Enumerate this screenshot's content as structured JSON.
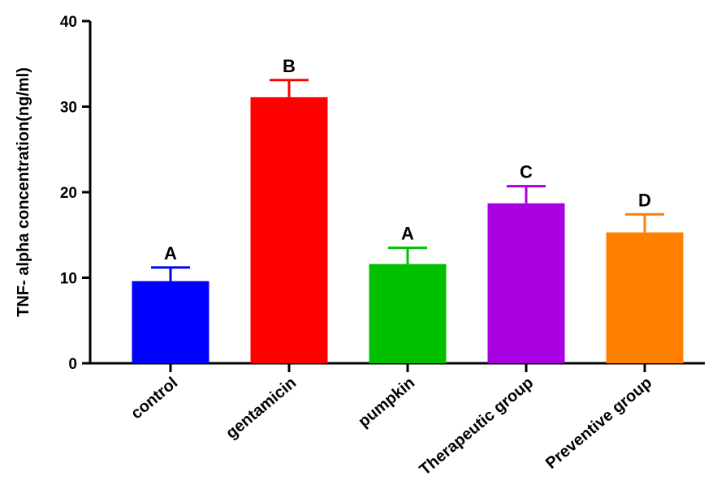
{
  "chart_data": {
    "type": "bar",
    "title": "",
    "xlabel": "",
    "ylabel": "TNF- alpha concentration(ng/ml)",
    "ylim": [
      0,
      40
    ],
    "yticks": [
      0,
      10,
      20,
      30,
      40
    ],
    "grid": false,
    "categories": [
      "control",
      "gentamicin",
      "pumpkin",
      "Therapeutic group",
      "Preventive group"
    ],
    "values": [
      9.6,
      31.1,
      11.6,
      18.7,
      15.3
    ],
    "errors": [
      1.6,
      2.0,
      1.9,
      2.0,
      2.1
    ],
    "significance_labels": [
      "A",
      "B",
      "A",
      "C",
      "D"
    ],
    "colors": [
      "#0000ff",
      "#ff0000",
      "#00c000",
      "#a800e0",
      "#ff8000"
    ]
  }
}
